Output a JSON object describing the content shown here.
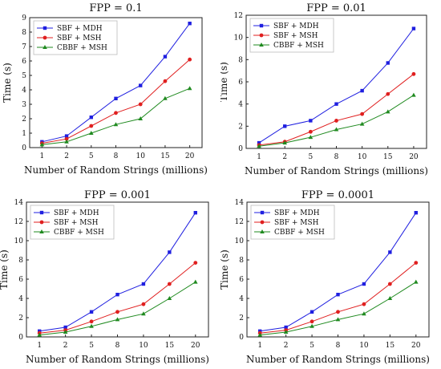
{
  "chart_data": [
    {
      "type": "line",
      "title": "FPP = 0.1",
      "xlabel": "Number of Random Strings (millions)",
      "ylabel": "Time (s)",
      "categories": [
        "1",
        "2",
        "5",
        "8",
        "10",
        "15",
        "20"
      ],
      "ylim": [
        0,
        9
      ],
      "yticks": [
        0,
        1,
        2,
        3,
        4,
        5,
        6,
        7,
        8,
        9
      ],
      "legend_position": "top-left",
      "grid": false,
      "series": [
        {
          "name": "SBF + MDH",
          "color": "#1f1fe0",
          "marker": "square",
          "values": [
            0.4,
            0.8,
            2.1,
            3.4,
            4.3,
            6.3,
            8.6
          ]
        },
        {
          "name": "SBF + MSH",
          "color": "#e01f1f",
          "marker": "circle",
          "values": [
            0.3,
            0.6,
            1.5,
            2.4,
            3.0,
            4.6,
            6.1
          ]
        },
        {
          "name": "CBBF + MSH",
          "color": "#1f8a1f",
          "marker": "triangle",
          "values": [
            0.2,
            0.4,
            1.0,
            1.6,
            2.0,
            3.4,
            4.1
          ]
        }
      ]
    },
    {
      "type": "line",
      "title": "FPP = 0.01",
      "xlabel": "Number of Random Strings (millions)",
      "ylabel": "Time (s)",
      "categories": [
        "1",
        "2",
        "5",
        "8",
        "10",
        "15",
        "20"
      ],
      "ylim": [
        0,
        12
      ],
      "yticks": [
        0,
        2,
        4,
        6,
        8,
        10,
        12
      ],
      "legend_position": "top-left",
      "grid": false,
      "series": [
        {
          "name": "SBF + MDH",
          "color": "#1f1fe0",
          "marker": "square",
          "values": [
            0.5,
            2.0,
            2.5,
            4.0,
            5.2,
            7.7,
            10.8
          ]
        },
        {
          "name": "SBF + MSH",
          "color": "#e01f1f",
          "marker": "circle",
          "values": [
            0.3,
            0.6,
            1.5,
            2.5,
            3.1,
            4.9,
            6.7
          ]
        },
        {
          "name": "CBBF + MSH",
          "color": "#1f8a1f",
          "marker": "triangle",
          "values": [
            0.2,
            0.5,
            1.0,
            1.7,
            2.2,
            3.3,
            4.8
          ]
        }
      ]
    },
    {
      "type": "line",
      "title": "FPP = 0.001",
      "xlabel": "Number of Random Strings (millions)",
      "ylabel": "Time (s)",
      "categories": [
        "1",
        "2",
        "5",
        "8",
        "10",
        "15",
        "20"
      ],
      "ylim": [
        0,
        14
      ],
      "yticks": [
        0,
        2,
        4,
        6,
        8,
        10,
        12,
        14
      ],
      "legend_position": "top-left",
      "grid": false,
      "series": [
        {
          "name": "SBF + MDH",
          "color": "#1f1fe0",
          "marker": "square",
          "values": [
            0.6,
            1.0,
            2.6,
            4.4,
            5.5,
            8.8,
            12.9
          ]
        },
        {
          "name": "SBF + MSH",
          "color": "#e01f1f",
          "marker": "circle",
          "values": [
            0.4,
            0.7,
            1.6,
            2.6,
            3.4,
            5.5,
            7.7
          ]
        },
        {
          "name": "CBBF + MSH",
          "color": "#1f8a1f",
          "marker": "triangle",
          "values": [
            0.2,
            0.5,
            1.1,
            1.8,
            2.4,
            4.0,
            5.7
          ]
        }
      ]
    },
    {
      "type": "line",
      "title": "FPP = 0.0001",
      "xlabel": "Number of Random Strings (millions)",
      "ylabel": "Time (s)",
      "categories": [
        "1",
        "2",
        "5",
        "8",
        "10",
        "15",
        "20"
      ],
      "ylim": [
        0,
        14
      ],
      "yticks": [
        0,
        2,
        4,
        6,
        8,
        10,
        12,
        14
      ],
      "legend_position": "top-left",
      "grid": false,
      "series": [
        {
          "name": "SBF + MDH",
          "color": "#1f1fe0",
          "marker": "square",
          "values": [
            0.6,
            1.0,
            2.6,
            4.4,
            5.5,
            8.8,
            12.9
          ]
        },
        {
          "name": "SBF + MSH",
          "color": "#e01f1f",
          "marker": "circle",
          "values": [
            0.4,
            0.7,
            1.6,
            2.6,
            3.4,
            5.5,
            7.7
          ]
        },
        {
          "name": "CBBF + MSH",
          "color": "#1f8a1f",
          "marker": "triangle",
          "values": [
            0.2,
            0.5,
            1.1,
            1.8,
            2.4,
            4.0,
            5.7
          ]
        }
      ]
    }
  ]
}
